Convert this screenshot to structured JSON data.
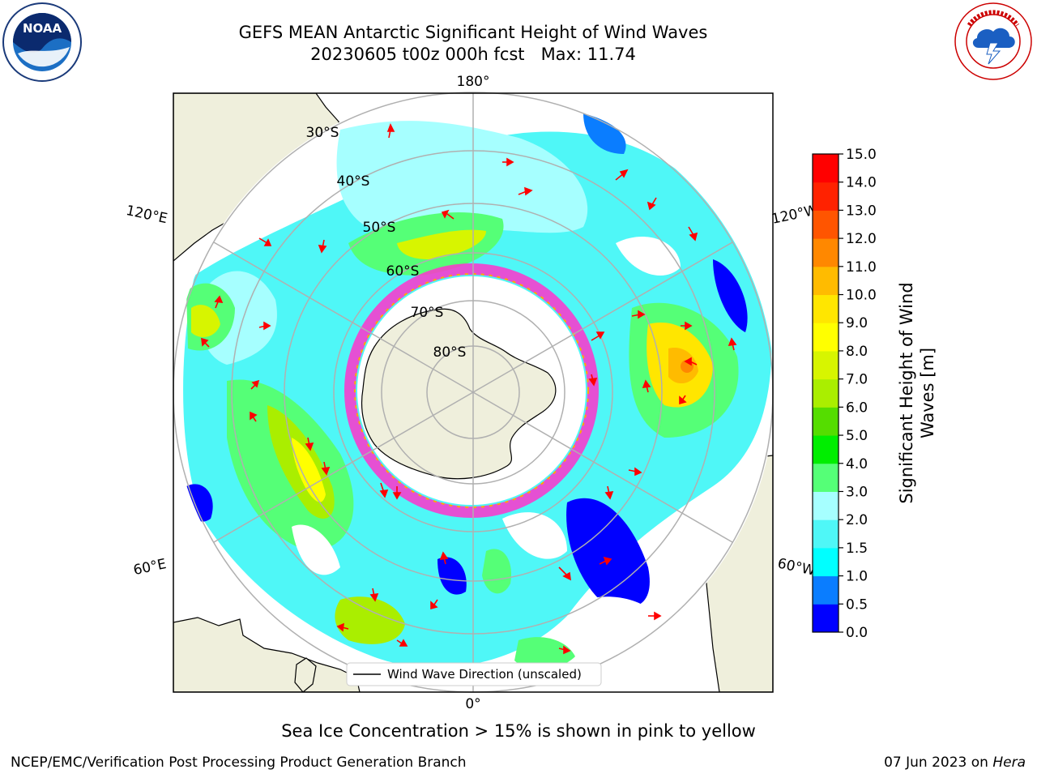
{
  "header": {
    "title_line1": "GEFS MEAN Antarctic Significant Height of Wind Waves",
    "title_line2": "20230605 t00z 000h fcst   Max: 11.74"
  },
  "logos": {
    "left": {
      "name": "noaa-logo",
      "text": "NOAA",
      "ring_text": "NATIONAL OCEANIC AND ATMOSPHERIC ADMINISTRATION · U.S. DEPARTMENT OF COMMERCE"
    },
    "right": {
      "name": "nws-logo",
      "ring_text": "NATIONAL WEATHER SERVICE"
    }
  },
  "map": {
    "projection": "south-polar-stereographic",
    "longitude_labels": [
      "180°",
      "120°E",
      "120°W",
      "60°E",
      "60°W",
      "0°"
    ],
    "latitude_labels": [
      "30°S",
      "40°S",
      "50°S",
      "60°S",
      "70°S",
      "80°S"
    ],
    "legend_label": "Wind Wave Direction (unscaled)",
    "colors": {
      "land": "#efefdc",
      "grid": "#b0b0b0",
      "arrow": "#ff0000",
      "sea_ice": [
        "#ff33cc",
        "#ffaa00",
        "#ffff00"
      ]
    }
  },
  "colorbar": {
    "label": "Significant Height of Wind Waves [m]",
    "label_lines": [
      "Significant Height of Wind",
      "Waves [m]"
    ],
    "ticks": [
      "0.0",
      "0.5",
      "1.0",
      "1.5",
      "2.0",
      "3.0",
      "4.0",
      "5.0",
      "6.0",
      "7.0",
      "8.0",
      "9.0",
      "10.0",
      "11.0",
      "12.0",
      "13.0",
      "14.0",
      "15.0"
    ],
    "colors": [
      "#0000ff",
      "#0a7dff",
      "#00ffff",
      "#4ff7f7",
      "#a6ffff",
      "#55ff77",
      "#00ee00",
      "#55dd00",
      "#aaee00",
      "#d7f500",
      "#ffff00",
      "#ffe600",
      "#ffbb00",
      "#ff8800",
      "#ff5500",
      "#ff2200",
      "#ff0000"
    ]
  },
  "notes": {
    "sea_ice": "Sea Ice Concentration > 15% is shown in pink to yellow"
  },
  "footer": {
    "producer": "NCEP/EMC/Verification Post Processing Product Generation Branch",
    "date": "07 Jun 2023 on",
    "machine": "Hera"
  }
}
